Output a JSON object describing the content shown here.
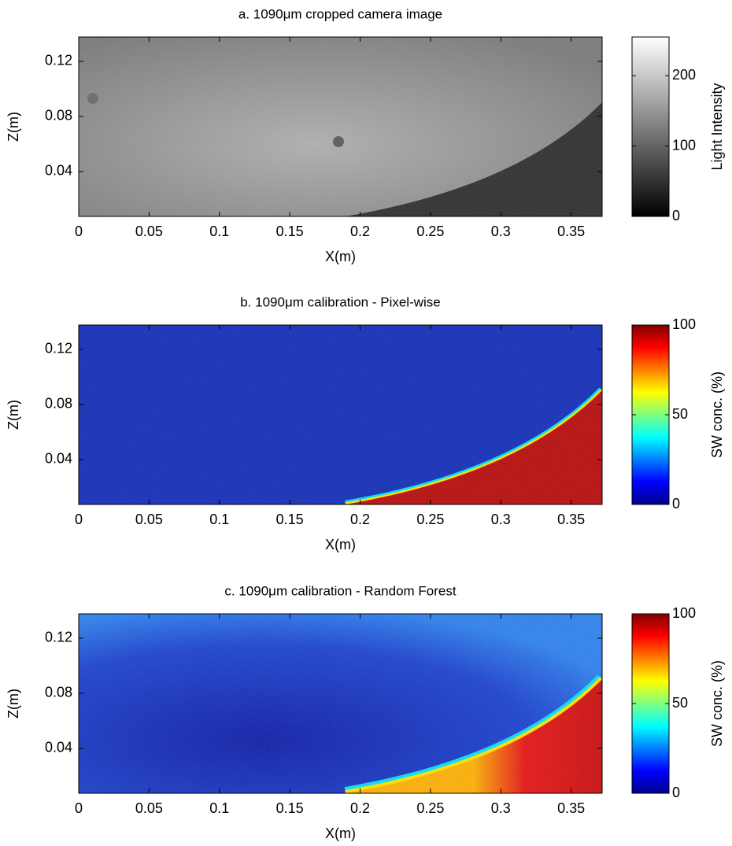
{
  "chart_data": [
    {
      "type": "heatmap",
      "title": "a. 1090μm cropped camera image",
      "xlabel": "X(m)",
      "ylabel": "Z(m)",
      "xlim": [
        0,
        0.372
      ],
      "ylim": [
        0.0074,
        0.1377
      ],
      "xticks": [
        0,
        0.05,
        0.1,
        0.15,
        0.2,
        0.25,
        0.3,
        0.35
      ],
      "yticks": [
        0.04,
        0.08,
        0.12
      ],
      "colormap": "gray",
      "clim": [
        0,
        255
      ],
      "cticks": [
        0,
        100,
        200
      ],
      "colorbar_label": "Light Intensity"
    },
    {
      "type": "heatmap",
      "title": "b. 1090μm calibration - Pixel-wise",
      "xlabel": "X(m)",
      "ylabel": "Z(m)",
      "xlim": [
        0,
        0.372
      ],
      "ylim": [
        0.0074,
        0.1377
      ],
      "xticks": [
        0,
        0.05,
        0.1,
        0.15,
        0.2,
        0.25,
        0.3,
        0.35
      ],
      "yticks": [
        0.04,
        0.08,
        0.12
      ],
      "colormap": "jet",
      "clim": [
        0,
        100
      ],
      "cticks": [
        0,
        50,
        100
      ],
      "colorbar_label": "SW conc.  (%)"
    },
    {
      "type": "heatmap",
      "title": "c. 1090μm calibration - Random Forest",
      "xlabel": "X(m)",
      "ylabel": "Z(m)",
      "xlim": [
        0,
        0.372
      ],
      "ylim": [
        0.0074,
        0.1377
      ],
      "xticks": [
        0,
        0.05,
        0.1,
        0.15,
        0.2,
        0.25,
        0.3,
        0.35
      ],
      "yticks": [
        0.04,
        0.08,
        0.12
      ],
      "colormap": "jet",
      "clim": [
        0,
        100
      ],
      "cticks": [
        0,
        50,
        100
      ],
      "colorbar_label": "SW conc.  (%)"
    }
  ]
}
